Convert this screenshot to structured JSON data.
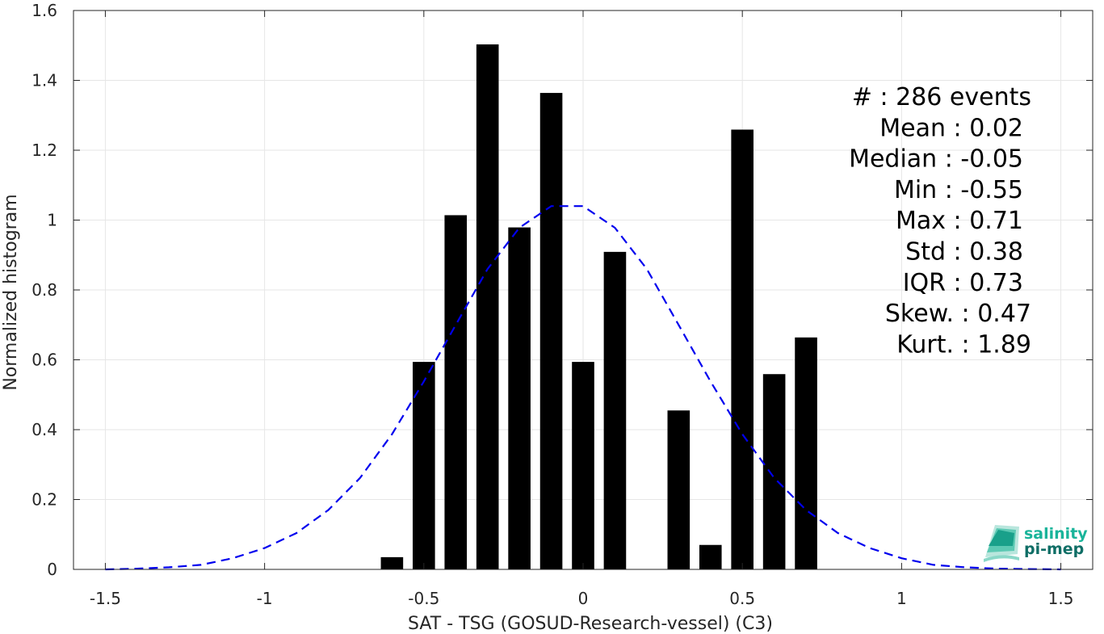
{
  "chart_data": {
    "type": "bar",
    "xlabel": "SAT - TSG (GOSUD-Research-vessel) (C3)",
    "ylabel": "Normalized histogram",
    "xlim": [
      -1.6,
      1.6
    ],
    "ylim": [
      0,
      1.6
    ],
    "xticks": [
      -1.5,
      -1,
      -0.5,
      0,
      0.5,
      1,
      1.5
    ],
    "xtick_labels": [
      "-1.5",
      "-1",
      "-0.5",
      "0",
      "0.5",
      "1",
      "1.5"
    ],
    "yticks": [
      0,
      0.2,
      0.4,
      0.6,
      0.8,
      1,
      1.2,
      1.4,
      1.6
    ],
    "ytick_labels": [
      "0",
      "0.2",
      "0.4",
      "0.6",
      "0.8",
      "1",
      "1.2",
      "1.4",
      "1.6"
    ],
    "grid": true,
    "bar_width": 0.07,
    "bars": [
      {
        "x": -0.6,
        "value": 0.035
      },
      {
        "x": -0.5,
        "value": 0.594
      },
      {
        "x": -0.4,
        "value": 1.014
      },
      {
        "x": -0.3,
        "value": 1.503
      },
      {
        "x": -0.2,
        "value": 0.979
      },
      {
        "x": -0.1,
        "value": 1.364
      },
      {
        "x": 0.0,
        "value": 0.594
      },
      {
        "x": 0.1,
        "value": 0.909
      },
      {
        "x": 0.3,
        "value": 0.455
      },
      {
        "x": 0.4,
        "value": 0.07
      },
      {
        "x": 0.5,
        "value": 1.259
      },
      {
        "x": 0.6,
        "value": 0.559
      },
      {
        "x": 0.7,
        "value": 0.664
      }
    ],
    "fit_curve": {
      "style": "dashed",
      "color": "#0000ee",
      "x": [
        -1.5,
        -1.4,
        -1.3,
        -1.2,
        -1.1,
        -1.0,
        -0.9,
        -0.8,
        -0.7,
        -0.6,
        -0.5,
        -0.4,
        -0.3,
        -0.2,
        -0.1,
        0.0,
        0.1,
        0.2,
        0.3,
        0.4,
        0.5,
        0.6,
        0.7,
        0.8,
        0.9,
        1.0,
        1.1,
        1.2,
        1.3,
        1.4,
        1.5
      ],
      "y": [
        0.0,
        0.002,
        0.006,
        0.013,
        0.032,
        0.061,
        0.104,
        0.17,
        0.262,
        0.387,
        0.538,
        0.7,
        0.86,
        0.978,
        1.04,
        1.04,
        0.978,
        0.86,
        0.7,
        0.538,
        0.387,
        0.262,
        0.17,
        0.104,
        0.061,
        0.032,
        0.013,
        0.006,
        0.002,
        0.001,
        0.0
      ]
    },
    "stats": [
      {
        "label": "#  : 286 events",
        "align_x": 1277
      },
      {
        "label": "Mean : 0.02",
        "align_x": 1267
      },
      {
        "label": "Median : -0.05",
        "align_x": 1267
      },
      {
        "label": "Min : -0.55",
        "align_x": 1267
      },
      {
        "label": "Max : 0.71",
        "align_x": 1267
      },
      {
        "label": "Std : 0.38",
        "align_x": 1267
      },
      {
        "label": "IQR : 0.73",
        "align_x": 1267
      },
      {
        "label": "Skew. : 0.47",
        "align_x": 1277
      },
      {
        "label": "Kurt. : 1.89",
        "align_x": 1277
      }
    ]
  },
  "logo": {
    "line1": "salinity",
    "line2": "pi-mep",
    "color_line1": "#19b49a",
    "color_line2": "#0f6e66"
  }
}
